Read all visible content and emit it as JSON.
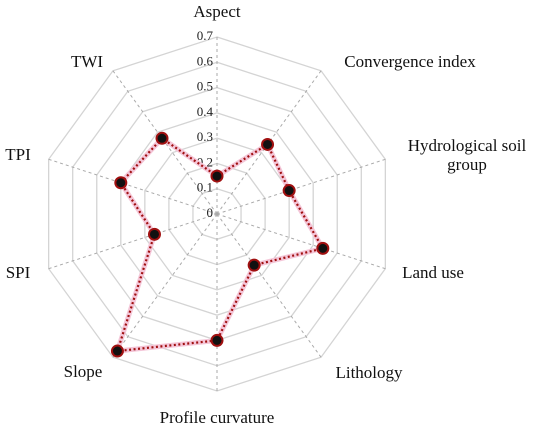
{
  "chart_data": {
    "type": "radar",
    "categories": [
      "Aspect",
      "Convergence index",
      "Hydrological soil group",
      "Land use",
      "Lithology",
      "Profile curvature",
      "Slope",
      "SPI",
      "TPI",
      "TWI"
    ],
    "values": [
      0.15,
      0.34,
      0.3,
      0.44,
      0.25,
      0.5,
      0.67,
      0.26,
      0.4,
      0.37
    ],
    "color": "#a01010",
    "ylim": [
      0,
      0.7
    ],
    "yticks": [
      0,
      0.1,
      0.2,
      0.3,
      0.4,
      0.5,
      0.6,
      0.7
    ],
    "grid": true
  }
}
